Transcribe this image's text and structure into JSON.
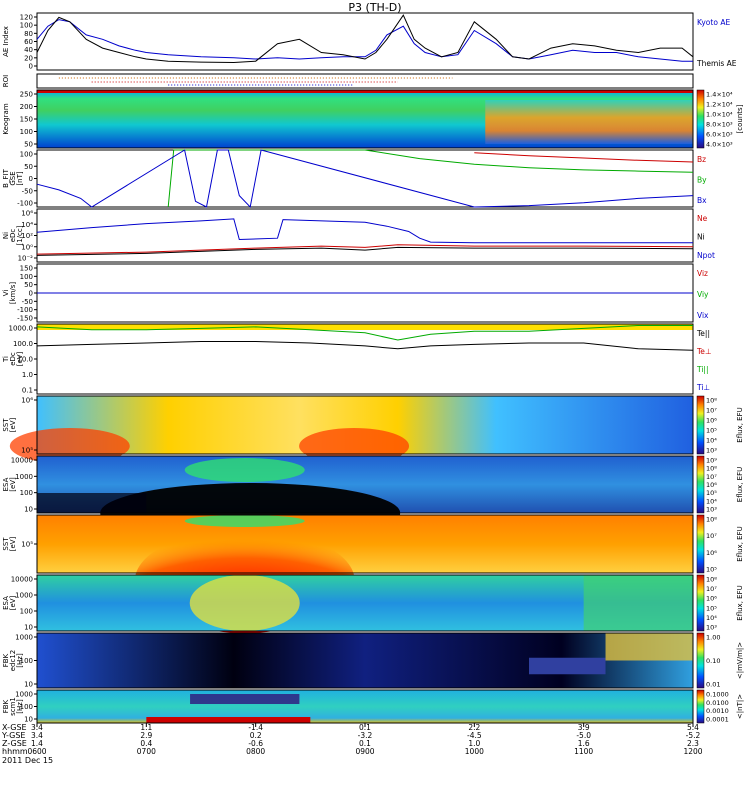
{
  "title": "P3 (TH-D)",
  "footer_date": "2011 Dec 15",
  "axis_rows": {
    "labels": [
      "X-GSE",
      "Y-GSE",
      "Z-GSE",
      "hhmm"
    ],
    "ticks": [
      {
        "X": "3.4",
        "Y": "3.4",
        "Z": "1.4",
        "t": "0600"
      },
      {
        "X": "1.1",
        "Y": "2.9",
        "Z": "0.4",
        "t": "0700"
      },
      {
        "X": "-1.4",
        "Y": "0.2",
        "Z": "-0.6",
        "t": "0800"
      },
      {
        "X": "0.1",
        "Y": "-3.2",
        "Z": "0.1",
        "t": "0900"
      },
      {
        "X": "2.2",
        "Y": "-4.5",
        "Z": "1.0",
        "t": "1000"
      },
      {
        "X": "3.9",
        "Y": "-5.0",
        "Z": "1.6",
        "t": "1100"
      },
      {
        "X": "5.4",
        "Y": "-5.2",
        "Z": "2.3",
        "t": "1200"
      }
    ]
  },
  "panels": [
    {
      "id": "ae",
      "ylabel": [
        "AE Index"
      ],
      "yticks": [
        "120",
        "100",
        "80",
        "60",
        "40",
        "20",
        "0"
      ],
      "legend": [
        {
          "text": "Kyoto AE",
          "color": "#0000cc"
        },
        {
          "text": "Themis AE",
          "color": "#000000"
        }
      ]
    },
    {
      "id": "roi",
      "ylabel": [
        "ROI"
      ],
      "yticks": [],
      "legend": []
    },
    {
      "id": "keogram",
      "ylabel": [
        "Keogram"
      ],
      "yticks": [
        "250",
        "200",
        "150",
        "100",
        "50"
      ],
      "colorbar": {
        "ticks": [
          "1.4×10⁴",
          "1.2×10⁴",
          "1.0×10⁴",
          "8.0×10³",
          "6.0×10³",
          "4.0×10³"
        ],
        "label": "[counts]"
      },
      "legend": []
    },
    {
      "id": "bfit",
      "ylabel": [
        "B_FIT",
        "GSE",
        "[nT]"
      ],
      "yticks": [
        "100",
        "50",
        "0",
        "-50",
        "-100"
      ],
      "legend": [
        {
          "text": "Bz",
          "color": "#cc0000"
        },
        {
          "text": "By",
          "color": "#00aa00"
        },
        {
          "text": "Bx",
          "color": "#0000cc"
        }
      ]
    },
    {
      "id": "ni",
      "ylabel": [
        "Ni",
        "eDc",
        "[1/cc]"
      ],
      "yticks": [
        "10⁶",
        "10⁴",
        "10²",
        "10⁰",
        "10⁻²"
      ],
      "legend": [
        {
          "text": "Ne",
          "color": "#cc0000"
        },
        {
          "text": "Ni",
          "color": "#000000"
        },
        {
          "text": "Npot",
          "color": "#0000cc"
        }
      ]
    },
    {
      "id": "vi",
      "ylabel": [
        "Vi",
        "[km/s]"
      ],
      "yticks": [
        "150",
        "100",
        "50",
        "0",
        "-50",
        "-100",
        "-150"
      ],
      "legend": [
        {
          "text": "Viz",
          "color": "#cc0000"
        },
        {
          "text": "Viy",
          "color": "#00aa00"
        },
        {
          "text": "Vix",
          "color": "#0000cc"
        }
      ]
    },
    {
      "id": "ti",
      "ylabel": [
        "Ti",
        "eDc",
        "[eV]"
      ],
      "yticks": [
        "1000.0",
        "100.0",
        "10.0",
        "1.0",
        "0.1"
      ],
      "legend": [
        {
          "text": "Te||",
          "color": "#000000"
        },
        {
          "text": "Te⊥",
          "color": "#cc0000"
        },
        {
          "text": "Ti||",
          "color": "#00aa00"
        },
        {
          "text": "Ti⊥",
          "color": "#0000cc"
        }
      ]
    },
    {
      "id": "sst1",
      "ylabel": [
        "SST",
        "[eV]"
      ],
      "yticks": [
        "10⁶",
        "10⁵"
      ],
      "colorbar": {
        "ticks": [
          "10⁸",
          "10⁷",
          "10⁶",
          "10⁵",
          "10⁴",
          "10³"
        ],
        "label": "Eflux, EFU"
      },
      "legend": []
    },
    {
      "id": "esa1",
      "ylabel": [
        "ESA",
        "[eV]"
      ],
      "yticks": [
        "10000",
        "1000",
        "100",
        "10"
      ],
      "colorbar": {
        "ticks": [
          "10⁹",
          "10⁸",
          "10⁷",
          "10⁶",
          "10⁵",
          "10⁴",
          "10³"
        ],
        "label": "Eflux, EFU"
      },
      "legend": []
    },
    {
      "id": "sst2",
      "ylabel": [
        "SST",
        "[eV]"
      ],
      "yticks": [
        "10⁵"
      ],
      "colorbar": {
        "ticks": [
          "10⁸",
          "10⁷",
          "10⁶",
          "10⁵"
        ],
        "label": "Eflux, EFU"
      },
      "legend": []
    },
    {
      "id": "esa2",
      "ylabel": [
        "ESA",
        "[eV]"
      ],
      "yticks": [
        "10000",
        "1000",
        "100",
        "10"
      ],
      "colorbar": {
        "ticks": [
          "10⁸",
          "10⁷",
          "10⁶",
          "10⁵",
          "10⁴",
          "10³"
        ],
        "label": "Eflux, EFU"
      },
      "legend": []
    },
    {
      "id": "fbk1",
      "ylabel": [
        "FBK",
        "edc12",
        "[Hz]"
      ],
      "yticks": [
        "1000",
        "100",
        "10"
      ],
      "colorbar": {
        "ticks": [
          "1.00",
          "0.10",
          "0.01"
        ],
        "label": "<|mV/m|>"
      },
      "legend": []
    },
    {
      "id": "fbk2",
      "ylabel": [
        "FBK",
        "scm1",
        "[Hz]"
      ],
      "yticks": [
        "1000",
        "100",
        "10"
      ],
      "colorbar": {
        "ticks": [
          "0.1000",
          "0.0100",
          "0.0010",
          "0.0001"
        ],
        "label": "<|nT|>"
      },
      "legend": []
    }
  ],
  "chart_data": {
    "type": "line",
    "title": "P3 (TH-D)",
    "x_range": [
      "06:00",
      "12:00"
    ],
    "panels": [
      {
        "id": "ae",
        "ylim": [
          0,
          130
        ],
        "series": [
          {
            "name": "Kyoto AE",
            "color": "#0000cc",
            "x": [
              6.0,
              6.1,
              6.2,
              6.3,
              6.45,
              6.6,
              6.75,
              6.9,
              7.0,
              7.2,
              7.5,
              7.8,
              8.0,
              8.2,
              8.4,
              8.6,
              8.8,
              9.0,
              9.1,
              9.2,
              9.35,
              9.45,
              9.55,
              9.7,
              9.85,
              10.0,
              10.2,
              10.35,
              10.5,
              10.7,
              10.9,
              11.1,
              11.3,
              11.5,
              11.7,
              11.9,
              12.0
            ],
            "values": [
              70,
              100,
              115,
              110,
              80,
              70,
              55,
              45,
              40,
              35,
              30,
              28,
              25,
              28,
              25,
              28,
              30,
              30,
              45,
              80,
              100,
              60,
              40,
              30,
              35,
              90,
              60,
              30,
              25,
              35,
              45,
              40,
              40,
              30,
              25,
              20,
              20
            ]
          },
          {
            "name": "Themis AE",
            "color": "#000000",
            "x": [
              6.0,
              6.1,
              6.2,
              6.3,
              6.45,
              6.6,
              6.75,
              6.9,
              7.0,
              7.2,
              7.5,
              7.8,
              8.0,
              8.2,
              8.4,
              8.6,
              8.8,
              9.0,
              9.1,
              9.2,
              9.35,
              9.45,
              9.55,
              9.7,
              9.85,
              10.0,
              10.2,
              10.35,
              10.5,
              10.7,
              10.9,
              11.1,
              11.3,
              11.5,
              11.7,
              11.9,
              12.0
            ],
            "values": [
              40,
              90,
              120,
              110,
              70,
              50,
              40,
              30,
              25,
              20,
              18,
              17,
              20,
              60,
              70,
              40,
              35,
              25,
              40,
              70,
              125,
              70,
              50,
              30,
              40,
              110,
              70,
              30,
              25,
              50,
              60,
              55,
              45,
              40,
              50,
              50,
              30
            ]
          }
        ]
      },
      {
        "id": "bfit",
        "ylim": [
          -100,
          100
        ],
        "series": [
          {
            "name": "Bz",
            "color": "#cc0000",
            "x": [
              10.0,
              10.5,
              11.0,
              11.5,
              12.0
            ],
            "values": [
              90,
              80,
              72,
              64,
              58
            ]
          },
          {
            "name": "By",
            "color": "#00aa00",
            "x": [
              7.2,
              7.25,
              9.0,
              9.5,
              10.0,
              10.5,
              11.0,
              11.5,
              12.0
            ],
            "values": [
              -100,
              100,
              100,
              70,
              50,
              38,
              30,
              26,
              22
            ]
          },
          {
            "name": "Bx",
            "color": "#0000cc",
            "x": [
              6.0,
              6.2,
              6.4,
              6.5,
              7.35,
              7.45,
              7.55,
              7.65,
              7.75,
              7.85,
              7.95,
              8.05,
              10.0,
              10.5,
              11.0,
              11.5,
              12.0
            ],
            "values": [
              -20,
              -40,
              -70,
              -100,
              100,
              -80,
              -120,
              100,
              100,
              -60,
              -120,
              100,
              -100,
              -95,
              -85,
              -70,
              -60
            ]
          }
        ]
      },
      {
        "id": "ni",
        "ylim": [
          -2,
          6
        ],
        "ylog": true,
        "series": [
          {
            "name": "Npot",
            "color": "#0000cc",
            "x": [
              6.0,
              6.5,
              7.0,
              7.5,
              7.8,
              7.85,
              8.2,
              8.25,
              9.0,
              9.2,
              9.4,
              9.5,
              9.6,
              10.0,
              11.0,
              12.0
            ],
            "values": [
              2.5,
              3.2,
              3.8,
              4.2,
              4.5,
              1.4,
              1.6,
              4.4,
              4.0,
              3.4,
              2.6,
              1.6,
              1.0,
              0.9,
              0.9,
              0.9
            ]
          },
          {
            "name": "Ne",
            "color": "#cc0000",
            "x": [
              6.0,
              7.0,
              8.0,
              8.6,
              9.0,
              9.3,
              10.0,
              11.0,
              12.0
            ],
            "values": [
              -0.8,
              -0.5,
              0.1,
              0.4,
              0.2,
              0.6,
              0.4,
              0.4,
              0.3
            ]
          },
          {
            "name": "Ni",
            "color": "#000000",
            "x": [
              6.0,
              7.0,
              8.0,
              8.6,
              9.0,
              9.3,
              10.0,
              11.0,
              12.0
            ],
            "values": [
              -1.0,
              -0.7,
              -0.1,
              0.1,
              -0.2,
              0.2,
              0.1,
              0.1,
              0.0
            ]
          }
        ]
      },
      {
        "id": "vi",
        "ylim": [
          -175,
          175
        ],
        "series": [
          {
            "name": "Vix",
            "color": "#0000cc",
            "x": [
              6.0,
              12.0
            ],
            "values": [
              0,
              0
            ]
          }
        ]
      },
      {
        "id": "ti",
        "ylim": [
          -1.3,
          3.5
        ],
        "ylog": true,
        "series": [
          {
            "name": "Ti||",
            "color": "#00aa00",
            "x": [
              6.0,
              6.5,
              7.0,
              7.5,
              8.0,
              8.5,
              9.0,
              9.3,
              9.6,
              10.0,
              10.5,
              11.0,
              11.5,
              12.0
            ],
            "values": [
              3.3,
              3.1,
              3.1,
              3.2,
              3.3,
              3.1,
              2.9,
              2.4,
              2.8,
              3.0,
              3.0,
              3.2,
              3.4,
              3.4
            ]
          },
          {
            "name": "Te||",
            "color": "#000000",
            "x": [
              6.0,
              6.5,
              7.0,
              7.5,
              8.0,
              8.5,
              9.0,
              9.3,
              9.6,
              10.0,
              10.5,
              11.0,
              11.5,
              12.0
            ],
            "values": [
              2.0,
              2.1,
              2.2,
              2.3,
              2.3,
              2.2,
              2.0,
              1.8,
              2.0,
              2.1,
              2.2,
              2.2,
              1.8,
              1.7
            ]
          }
        ]
      }
    ]
  }
}
